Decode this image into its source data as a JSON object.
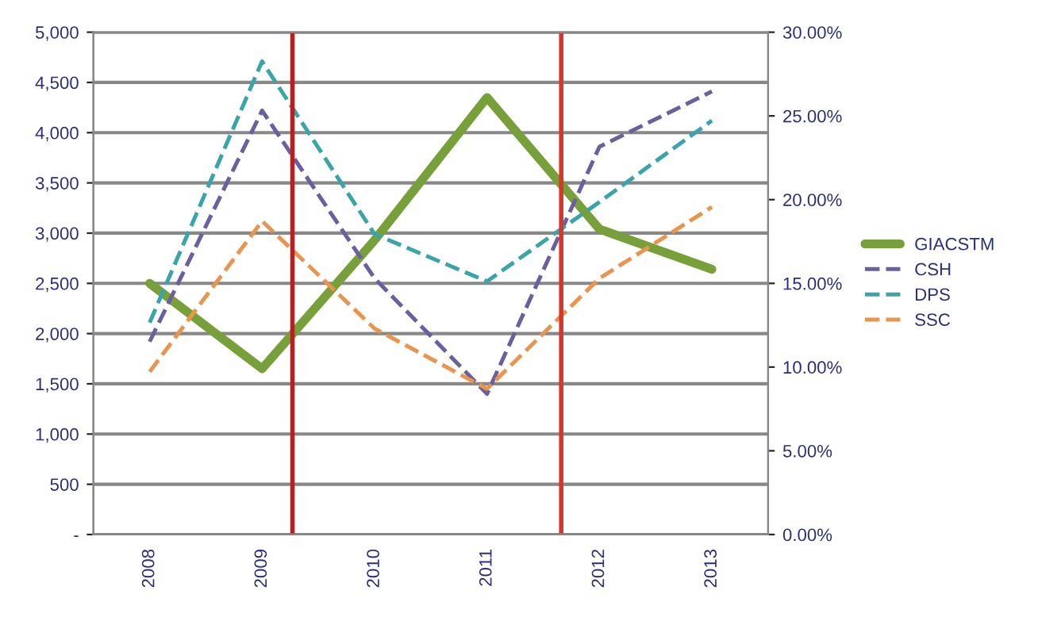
{
  "chart_data": {
    "type": "line",
    "x": [
      2008,
      2009,
      2010,
      2011,
      2012,
      2013
    ],
    "series": [
      {
        "name": "GIACSTM",
        "color": "#77a03a",
        "line_style": "solid",
        "values": [
          2500,
          1650,
          2930,
          4350,
          3040,
          2640
        ]
      },
      {
        "name": "CSH",
        "color": "#6b5f9e",
        "line_style": "dashed",
        "values": [
          1920,
          4220,
          2550,
          1400,
          3860,
          4410
        ]
      },
      {
        "name": "DPS",
        "color": "#3aa5a8",
        "line_style": "dashed",
        "values": [
          2110,
          4710,
          2990,
          2520,
          3310,
          4120
        ]
      },
      {
        "name": "SSC",
        "color": "#e8954f",
        "line_style": "dashed",
        "values": [
          1620,
          3120,
          2050,
          1450,
          2550,
          3260
        ]
      }
    ],
    "xlim": [
      2007.5,
      2013.5
    ],
    "xticks": [
      {
        "value": 2008,
        "label": "2008"
      },
      {
        "value": 2009,
        "label": "2009"
      },
      {
        "value": 2010,
        "label": "2010"
      },
      {
        "value": 2011,
        "label": "2011"
      },
      {
        "value": 2012,
        "label": "2012"
      },
      {
        "value": 2013,
        "label": "2013"
      }
    ],
    "ylim": [
      0,
      5000
    ],
    "yticks": [
      {
        "value": 0,
        "label": "-"
      },
      500,
      {
        "value": 1000,
        "label": "1,000"
      },
      {
        "value": 1500,
        "label": "1,500"
      },
      {
        "value": 2000,
        "label": "2,000"
      },
      {
        "value": 2500,
        "label": "2,500"
      },
      {
        "value": 3000,
        "label": "3,000"
      },
      {
        "value": 3500,
        "label": "3,500"
      },
      {
        "value": 4000,
        "label": "4,000"
      },
      {
        "value": 4500,
        "label": "4,500"
      },
      {
        "value": 5000,
        "label": "5,000"
      }
    ],
    "y2lim": [
      0,
      30
    ],
    "y2ticks": [
      {
        "value": 0,
        "label": "0.00%"
      },
      {
        "value": 5,
        "label": "5.00%"
      },
      {
        "value": 10,
        "label": "10.00%"
      },
      {
        "value": 15,
        "label": "15.00%"
      },
      {
        "value": 20,
        "label": "20.00%"
      },
      {
        "value": 25,
        "label": "25.00%"
      },
      {
        "value": 30,
        "label": "30.00%"
      }
    ],
    "ref_lines": [
      {
        "axis": "x",
        "value": 2009.27,
        "color": "#b22222"
      },
      {
        "axis": "x",
        "value": 2011.66,
        "color": "#d9362b"
      }
    ],
    "grid": "y",
    "legend": "right"
  }
}
